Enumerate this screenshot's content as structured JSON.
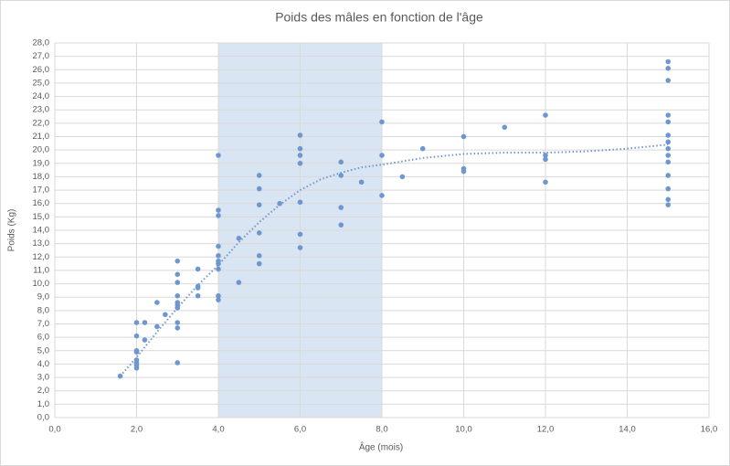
{
  "chart_data": {
    "type": "scatter",
    "title": "Poids des mâles en fonction de l'âge",
    "x_label": "Âge (mois)",
    "y_label": "Poids (Kg)",
    "color": "#6f97cf",
    "x": [
      1.6,
      2,
      2,
      2,
      2,
      2,
      2,
      2,
      2,
      2.2,
      2.2,
      2.5,
      2.5,
      2.7,
      3,
      3,
      3,
      3,
      3,
      3,
      3,
      3,
      3,
      3,
      3.5,
      3.5,
      3.5,
      3.5,
      4,
      4,
      4,
      4,
      4,
      4,
      4,
      4,
      4,
      4,
      4.5,
      4.5,
      5,
      5,
      5,
      5,
      5,
      5,
      5.5,
      6,
      6,
      6,
      6,
      6,
      6,
      6,
      7,
      7,
      7,
      7,
      7.5,
      8,
      8,
      8,
      8.5,
      9,
      10,
      10,
      10,
      11,
      12,
      12,
      12,
      12,
      15,
      15,
      15,
      15,
      15,
      15,
      15,
      15,
      15,
      15,
      15,
      15,
      15,
      15
    ],
    "y": [
      3.1,
      7.1,
      6.1,
      5.0,
      4.9,
      4.3,
      4.1,
      3.9,
      3.7,
      7.1,
      5.8,
      8.6,
      6.8,
      7.7,
      11.7,
      10.7,
      10.1,
      9.1,
      8.6,
      8.4,
      8.2,
      7.1,
      6.7,
      4.1,
      11.1,
      9.8,
      9.7,
      9.1,
      19.6,
      15.5,
      15.1,
      12.8,
      12.1,
      11.7,
      11.5,
      11.1,
      9.1,
      8.8,
      13.4,
      10.1,
      18.1,
      17.1,
      15.9,
      13.8,
      12.1,
      11.5,
      16.0,
      21.1,
      20.1,
      19.6,
      19.0,
      16.1,
      13.7,
      12.7,
      19.1,
      18.1,
      15.7,
      14.4,
      17.6,
      22.1,
      19.6,
      16.6,
      18.0,
      20.1,
      21.0,
      18.6,
      18.4,
      21.7,
      22.6,
      19.6,
      19.3,
      17.6,
      26.6,
      26.1,
      25.2,
      22.6,
      22.1,
      21.1,
      20.6,
      20.1,
      19.6,
      19.1,
      18.1,
      17.1,
      16.3,
      15.9
    ],
    "trendline": {
      "color": "#6f97cf",
      "x": [
        1.6,
        2,
        2.5,
        3,
        3.5,
        4,
        4.5,
        5,
        5.5,
        6,
        6.5,
        7,
        7.5,
        8,
        9,
        10,
        11,
        12,
        13,
        14,
        15
      ],
      "y": [
        3.1,
        4.5,
        6.4,
        8.2,
        9.9,
        11.4,
        13.1,
        14.6,
        15.9,
        17.0,
        17.8,
        18.3,
        18.7,
        18.9,
        19.4,
        19.7,
        19.8,
        19.8,
        19.9,
        20.1,
        20.4
      ]
    },
    "highlight_range": [
      4,
      8
    ],
    "highlight_color": "#dae5f3",
    "grid": true,
    "xlim": [
      0,
      16
    ],
    "xticks": [
      {
        "value": 0,
        "label": "0,0"
      },
      {
        "value": 2,
        "label": "2,0"
      },
      {
        "value": 4,
        "label": "4,0"
      },
      {
        "value": 6,
        "label": "6,0"
      },
      {
        "value": 8,
        "label": "8,0"
      },
      {
        "value": 10,
        "label": "10,0"
      },
      {
        "value": 12,
        "label": "12,0"
      },
      {
        "value": 14,
        "label": "14,0"
      },
      {
        "value": 16,
        "label": "16,0"
      }
    ],
    "ylim": [
      0,
      28
    ],
    "yticks": [
      {
        "value": 0,
        "label": "0,0"
      },
      {
        "value": 1,
        "label": "1,0"
      },
      {
        "value": 2,
        "label": "2,0"
      },
      {
        "value": 3,
        "label": "3,0"
      },
      {
        "value": 4,
        "label": "4,0"
      },
      {
        "value": 5,
        "label": "5,0"
      },
      {
        "value": 6,
        "label": "6,0"
      },
      {
        "value": 7,
        "label": "7,0"
      },
      {
        "value": 8,
        "label": "8,0"
      },
      {
        "value": 9,
        "label": "9,0"
      },
      {
        "value": 10,
        "label": "10,0"
      },
      {
        "value": 11,
        "label": "11,0"
      },
      {
        "value": 12,
        "label": "12,0"
      },
      {
        "value": 13,
        "label": "13,0"
      },
      {
        "value": 14,
        "label": "14,0"
      },
      {
        "value": 15,
        "label": "15,0"
      },
      {
        "value": 16,
        "label": "16,0"
      },
      {
        "value": 17,
        "label": "17,0"
      },
      {
        "value": 18,
        "label": "18,0"
      },
      {
        "value": 19,
        "label": "19,0"
      },
      {
        "value": 20,
        "label": "20,0"
      },
      {
        "value": 21,
        "label": "21,0"
      },
      {
        "value": 22,
        "label": "22,0"
      },
      {
        "value": 23,
        "label": "23,0"
      },
      {
        "value": 24,
        "label": "24,0"
      },
      {
        "value": 25,
        "label": "25,0"
      },
      {
        "value": 26,
        "label": "26,0"
      },
      {
        "value": 27,
        "label": "27,0"
      },
      {
        "value": 28,
        "label": "28,0"
      }
    ]
  }
}
